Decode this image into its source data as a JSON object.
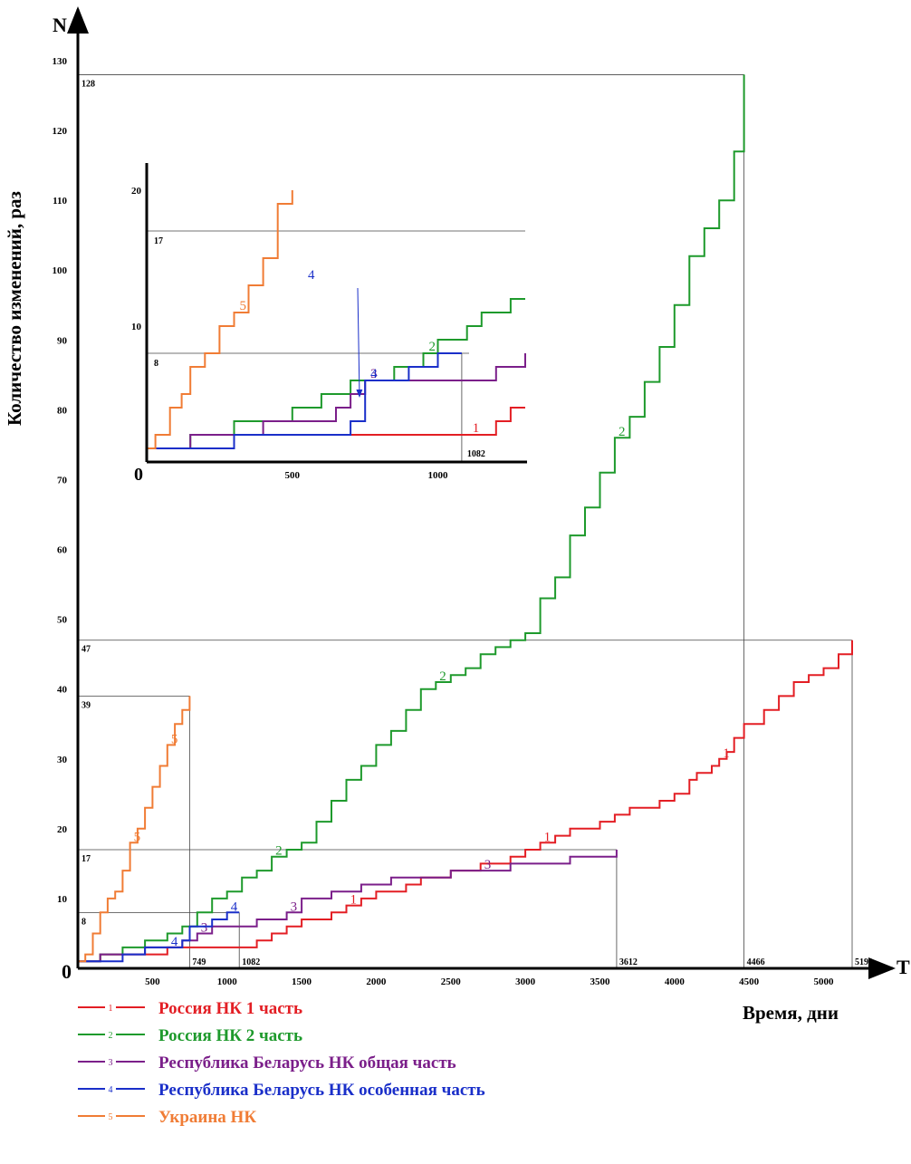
{
  "chart_data": [
    {
      "type": "line",
      "title": "",
      "ylabel": "Количество изменений, раз",
      "xlabel": "Время, дни",
      "y_axis_letter": "N",
      "x_axis_letter": "T",
      "origin_label": "0",
      "xlim": [
        0,
        5300
      ],
      "ylim": [
        0,
        130
      ],
      "x_ticks": [
        500,
        1000,
        1500,
        2000,
        2500,
        3000,
        3500,
        4000,
        4500,
        5000
      ],
      "y_ticks": [
        10,
        20,
        30,
        40,
        50,
        60,
        70,
        80,
        90,
        100,
        110,
        120,
        130
      ],
      "grid": false,
      "legend_position": "bottom-left",
      "reference_lines": [
        {
          "x": 749,
          "y": 39,
          "x_label": "749",
          "y_label": "39"
        },
        {
          "x": 1082,
          "y": 8,
          "x_label": "1082",
          "y_label": "8"
        },
        {
          "x": 3612,
          "y": 17,
          "x_label": "3612",
          "y_label": "17"
        },
        {
          "x": 4466,
          "y": 128,
          "x_label": "4466",
          "y_label": "128"
        },
        {
          "x": 5191,
          "y": 47,
          "x_label": "5191",
          "y_label": "47"
        }
      ],
      "series": [
        {
          "name": "Россия НК 1 часть",
          "marker": "1",
          "color": "#e31e24",
          "x": [
            0,
            150,
            300,
            600,
            900,
            1150,
            1200,
            1300,
            1400,
            1500,
            1600,
            1700,
            1800,
            1900,
            2000,
            2100,
            2200,
            2300,
            2400,
            2500,
            2600,
            2700,
            2800,
            2900,
            3000,
            3100,
            3200,
            3300,
            3400,
            3500,
            3600,
            3700,
            3800,
            3900,
            4000,
            4100,
            4150,
            4200,
            4250,
            4300,
            4350,
            4400,
            4466,
            4600,
            4700,
            4800,
            4900,
            5000,
            5100,
            5191
          ],
          "y": [
            1,
            2,
            2,
            3,
            3,
            3,
            4,
            5,
            6,
            7,
            7,
            8,
            9,
            10,
            11,
            11,
            12,
            13,
            13,
            14,
            14,
            15,
            15,
            16,
            17,
            18,
            19,
            20,
            20,
            21,
            22,
            23,
            23,
            24,
            25,
            27,
            28,
            28,
            29,
            30,
            31,
            33,
            35,
            37,
            39,
            41,
            42,
            43,
            45,
            47
          ]
        },
        {
          "name": "Россия НК 2 часть",
          "marker": "2",
          "color": "#1e9a2c",
          "x": [
            0,
            150,
            300,
            450,
            600,
            700,
            800,
            900,
            1000,
            1100,
            1200,
            1300,
            1400,
            1500,
            1600,
            1700,
            1800,
            1900,
            2000,
            2100,
            2200,
            2300,
            2400,
            2500,
            2600,
            2700,
            2800,
            2900,
            3000,
            3100,
            3200,
            3300,
            3400,
            3500,
            3600,
            3700,
            3800,
            3900,
            4000,
            4100,
            4200,
            4300,
            4400,
            4466
          ],
          "y": [
            1,
            2,
            3,
            4,
            5,
            6,
            8,
            10,
            11,
            13,
            14,
            16,
            17,
            18,
            21,
            24,
            27,
            29,
            32,
            34,
            37,
            40,
            41,
            42,
            43,
            45,
            46,
            47,
            48,
            53,
            56,
            62,
            66,
            71,
            76,
            79,
            84,
            89,
            95,
            102,
            106,
            110,
            117,
            128
          ]
        },
        {
          "name": "Республика Беларусь НК общая часть",
          "marker": "3",
          "color": "#7b1f8a",
          "x": [
            0,
            150,
            300,
            450,
            600,
            700,
            800,
            900,
            1000,
            1082,
            1200,
            1300,
            1400,
            1500,
            1700,
            1900,
            2100,
            2300,
            2500,
            2700,
            2900,
            3100,
            3300,
            3500,
            3612
          ],
          "y": [
            1,
            2,
            2,
            3,
            3,
            4,
            5,
            6,
            6,
            6,
            7,
            7,
            8,
            10,
            11,
            12,
            13,
            13,
            14,
            14,
            15,
            15,
            16,
            16,
            17
          ]
        },
        {
          "name": "Республика Беларусь НК особенная часть",
          "marker": "4",
          "color": "#1a2fc9",
          "x": [
            0,
            150,
            300,
            450,
            600,
            700,
            750,
            900,
            1000,
            1082
          ],
          "y": [
            1,
            1,
            2,
            3,
            3,
            4,
            6,
            7,
            8,
            8
          ]
        },
        {
          "name": "Украина НК",
          "marker": "5",
          "color": "#f07c35",
          "x": [
            0,
            50,
            100,
            150,
            200,
            250,
            300,
            350,
            400,
            450,
            500,
            550,
            600,
            650,
            700,
            749
          ],
          "y": [
            1,
            2,
            5,
            8,
            10,
            11,
            14,
            18,
            20,
            23,
            26,
            29,
            32,
            35,
            37,
            39
          ]
        }
      ]
    },
    {
      "type": "line",
      "title": "",
      "origin_label": "0",
      "xlim": [
        0,
        1300
      ],
      "ylim": [
        0,
        22
      ],
      "x_ticks": [
        500,
        1000
      ],
      "y_ticks": [
        10,
        20
      ],
      "grid": false,
      "reference_lines": [
        {
          "y": 17,
          "y_label": "17"
        },
        {
          "x": 1082,
          "y": 8,
          "x_label": "1082",
          "y_label": "8"
        }
      ],
      "annotation": {
        "text": "4",
        "points_to_series": 4
      },
      "series": [
        {
          "marker": "1",
          "color": "#e31e24",
          "x": [
            0,
            100,
            300,
            500,
            700,
            900,
            1100,
            1200,
            1250,
            1300
          ],
          "y": [
            1,
            1,
            2,
            2,
            2,
            2,
            2,
            3,
            4,
            4
          ]
        },
        {
          "marker": "2",
          "color": "#1e9a2c",
          "x": [
            0,
            150,
            300,
            500,
            600,
            700,
            850,
            950,
            1000,
            1100,
            1150,
            1250,
            1300
          ],
          "y": [
            1,
            2,
            3,
            4,
            5,
            6,
            7,
            8,
            9,
            10,
            11,
            12,
            12
          ]
        },
        {
          "marker": "3",
          "color": "#7b1f8a",
          "x": [
            0,
            150,
            300,
            400,
            550,
            650,
            700,
            750,
            900,
            1082,
            1200,
            1300
          ],
          "y": [
            1,
            2,
            2,
            3,
            3,
            4,
            5,
            6,
            6,
            6,
            7,
            8
          ]
        },
        {
          "marker": "4",
          "color": "#1a2fc9",
          "x": [
            0,
            150,
            300,
            450,
            600,
            700,
            750,
            900,
            1000,
            1082
          ],
          "y": [
            1,
            1,
            2,
            2,
            2,
            3,
            6,
            7,
            8,
            8
          ]
        },
        {
          "marker": "5",
          "color": "#f07c35",
          "x": [
            0,
            30,
            80,
            120,
            150,
            200,
            250,
            300,
            350,
            400,
            450,
            500
          ],
          "y": [
            1,
            2,
            4,
            5,
            7,
            8,
            10,
            11,
            13,
            15,
            19,
            20
          ]
        }
      ]
    }
  ]
}
